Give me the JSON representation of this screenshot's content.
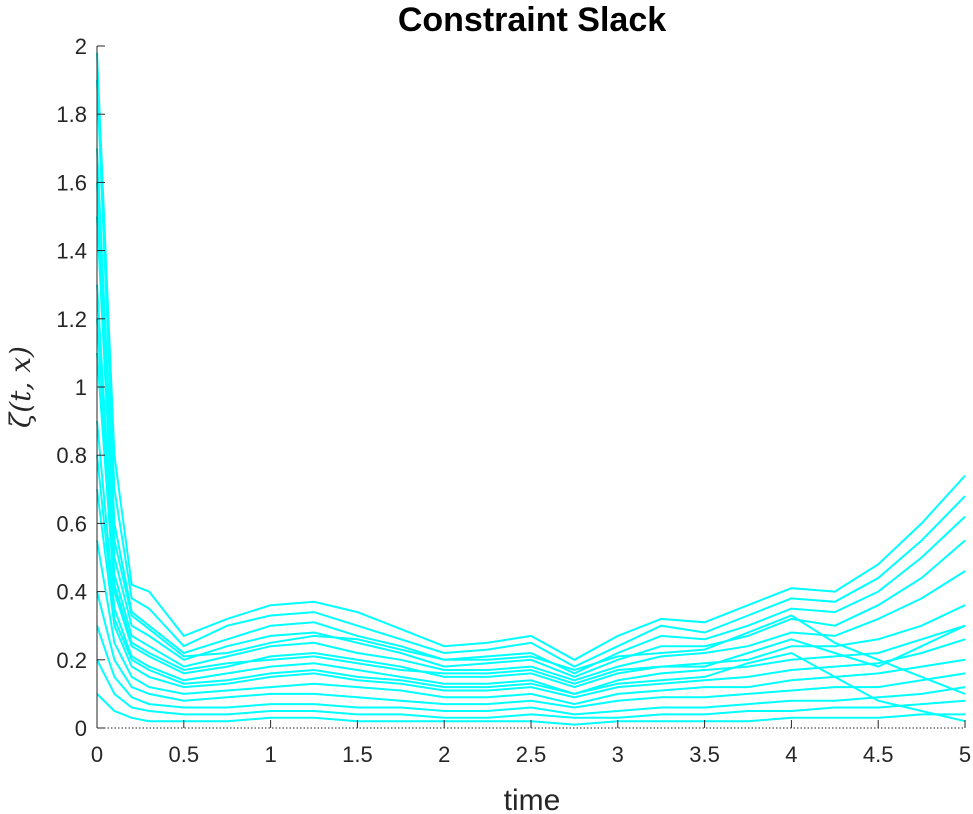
{
  "chart_data": {
    "type": "line",
    "title": "Constraint Slack",
    "xlabel": "time",
    "ylabel": "ζ(t, x)",
    "xlim": [
      0,
      5
    ],
    "ylim": [
      0,
      2
    ],
    "xticks": [
      0,
      0.5,
      1,
      1.5,
      2,
      2.5,
      3,
      3.5,
      4,
      4.5,
      5
    ],
    "xtick_labels": [
      "0",
      "0.5",
      "1",
      "1.5",
      "2",
      "2.5",
      "3",
      "3.5",
      "4",
      "4.5",
      "5"
    ],
    "yticks": [
      0,
      0.2,
      0.4,
      0.6,
      0.8,
      1,
      1.2,
      1.4,
      1.6,
      1.8,
      2
    ],
    "ytick_labels": [
      "0",
      "0.2",
      "0.4",
      "0.6",
      "0.8",
      "1",
      "1.2",
      "1.4",
      "1.6",
      "1.8",
      "2"
    ],
    "line_color": "#00FFFF",
    "zero_line": "dotted",
    "grid": false,
    "x": [
      0,
      0.1,
      0.2,
      0.3,
      0.5,
      0.75,
      1,
      1.25,
      1.5,
      1.75,
      2,
      2.25,
      2.5,
      2.75,
      3,
      3.25,
      3.5,
      3.75,
      4,
      4.25,
      4.5,
      4.75,
      5
    ],
    "series": [
      {
        "values": [
          1.98,
          0.8,
          0.42,
          0.4,
          0.27,
          0.32,
          0.36,
          0.37,
          0.34,
          0.29,
          0.24,
          0.25,
          0.27,
          0.2,
          0.27,
          0.32,
          0.31,
          0.36,
          0.41,
          0.4,
          0.48,
          0.6,
          0.74
        ]
      },
      {
        "values": [
          1.9,
          0.7,
          0.38,
          0.35,
          0.24,
          0.3,
          0.33,
          0.34,
          0.3,
          0.26,
          0.22,
          0.23,
          0.25,
          0.18,
          0.24,
          0.3,
          0.28,
          0.33,
          0.38,
          0.37,
          0.44,
          0.55,
          0.68
        ]
      },
      {
        "values": [
          1.7,
          0.6,
          0.34,
          0.3,
          0.22,
          0.26,
          0.3,
          0.31,
          0.27,
          0.24,
          0.2,
          0.21,
          0.22,
          0.16,
          0.22,
          0.27,
          0.26,
          0.3,
          0.35,
          0.34,
          0.4,
          0.5,
          0.62
        ]
      },
      {
        "values": [
          1.5,
          0.5,
          0.3,
          0.27,
          0.2,
          0.24,
          0.27,
          0.28,
          0.25,
          0.22,
          0.18,
          0.19,
          0.2,
          0.15,
          0.2,
          0.24,
          0.24,
          0.27,
          0.32,
          0.3,
          0.36,
          0.44,
          0.55
        ]
      },
      {
        "values": [
          1.3,
          0.45,
          0.27,
          0.24,
          0.18,
          0.21,
          0.24,
          0.25,
          0.22,
          0.2,
          0.17,
          0.17,
          0.18,
          0.14,
          0.18,
          0.21,
          0.22,
          0.24,
          0.28,
          0.27,
          0.32,
          0.38,
          0.46
        ]
      },
      {
        "values": [
          1.1,
          0.4,
          0.24,
          0.21,
          0.16,
          0.18,
          0.21,
          0.22,
          0.2,
          0.18,
          0.15,
          0.15,
          0.16,
          0.12,
          0.16,
          0.18,
          0.19,
          0.2,
          0.24,
          0.24,
          0.26,
          0.3,
          0.36
        ]
      },
      {
        "values": [
          0.9,
          0.35,
          0.21,
          0.18,
          0.14,
          0.16,
          0.18,
          0.19,
          0.17,
          0.15,
          0.13,
          0.13,
          0.14,
          0.1,
          0.14,
          0.16,
          0.17,
          0.18,
          0.2,
          0.21,
          0.22,
          0.26,
          0.3
        ]
      },
      {
        "values": [
          0.7,
          0.3,
          0.18,
          0.15,
          0.12,
          0.13,
          0.15,
          0.16,
          0.14,
          0.13,
          0.11,
          0.11,
          0.12,
          0.09,
          0.12,
          0.13,
          0.14,
          0.15,
          0.17,
          0.18,
          0.19,
          0.22,
          0.26
        ]
      },
      {
        "values": [
          0.55,
          0.25,
          0.15,
          0.12,
          0.1,
          0.11,
          0.12,
          0.13,
          0.12,
          0.11,
          0.09,
          0.09,
          0.1,
          0.07,
          0.1,
          0.11,
          0.12,
          0.12,
          0.14,
          0.15,
          0.16,
          0.18,
          0.2
        ]
      },
      {
        "values": [
          0.4,
          0.2,
          0.12,
          0.1,
          0.08,
          0.09,
          0.1,
          0.1,
          0.09,
          0.08,
          0.07,
          0.07,
          0.08,
          0.06,
          0.08,
          0.09,
          0.09,
          0.1,
          0.11,
          0.12,
          0.12,
          0.14,
          0.16
        ]
      },
      {
        "values": [
          0.3,
          0.15,
          0.09,
          0.07,
          0.06,
          0.06,
          0.07,
          0.07,
          0.06,
          0.06,
          0.05,
          0.05,
          0.06,
          0.04,
          0.05,
          0.06,
          0.06,
          0.07,
          0.08,
          0.08,
          0.09,
          0.1,
          0.12
        ]
      },
      {
        "values": [
          0.2,
          0.1,
          0.06,
          0.05,
          0.04,
          0.04,
          0.05,
          0.05,
          0.04,
          0.04,
          0.03,
          0.03,
          0.04,
          0.03,
          0.03,
          0.04,
          0.04,
          0.05,
          0.05,
          0.06,
          0.06,
          0.07,
          0.08
        ]
      },
      {
        "values": [
          0.1,
          0.05,
          0.03,
          0.02,
          0.02,
          0.02,
          0.03,
          0.03,
          0.02,
          0.02,
          0.02,
          0.02,
          0.02,
          0.01,
          0.02,
          0.02,
          0.02,
          0.02,
          0.03,
          0.03,
          0.03,
          0.04,
          0.04
        ]
      },
      {
        "values": [
          1.6,
          0.55,
          0.33,
          0.29,
          0.21,
          0.22,
          0.25,
          0.27,
          0.26,
          0.23,
          0.2,
          0.2,
          0.21,
          0.17,
          0.21,
          0.22,
          0.23,
          0.28,
          0.33,
          0.25,
          0.2,
          0.15,
          0.1
        ]
      },
      {
        "values": [
          1.2,
          0.42,
          0.25,
          0.22,
          0.17,
          0.19,
          0.2,
          0.21,
          0.19,
          0.17,
          0.16,
          0.16,
          0.17,
          0.13,
          0.17,
          0.18,
          0.18,
          0.22,
          0.26,
          0.22,
          0.18,
          0.24,
          0.3
        ]
      },
      {
        "values": [
          0.8,
          0.32,
          0.2,
          0.17,
          0.13,
          0.14,
          0.16,
          0.17,
          0.15,
          0.14,
          0.12,
          0.12,
          0.13,
          0.1,
          0.13,
          0.14,
          0.15,
          0.19,
          0.22,
          0.15,
          0.08,
          0.05,
          0.02
        ]
      }
    ]
  }
}
